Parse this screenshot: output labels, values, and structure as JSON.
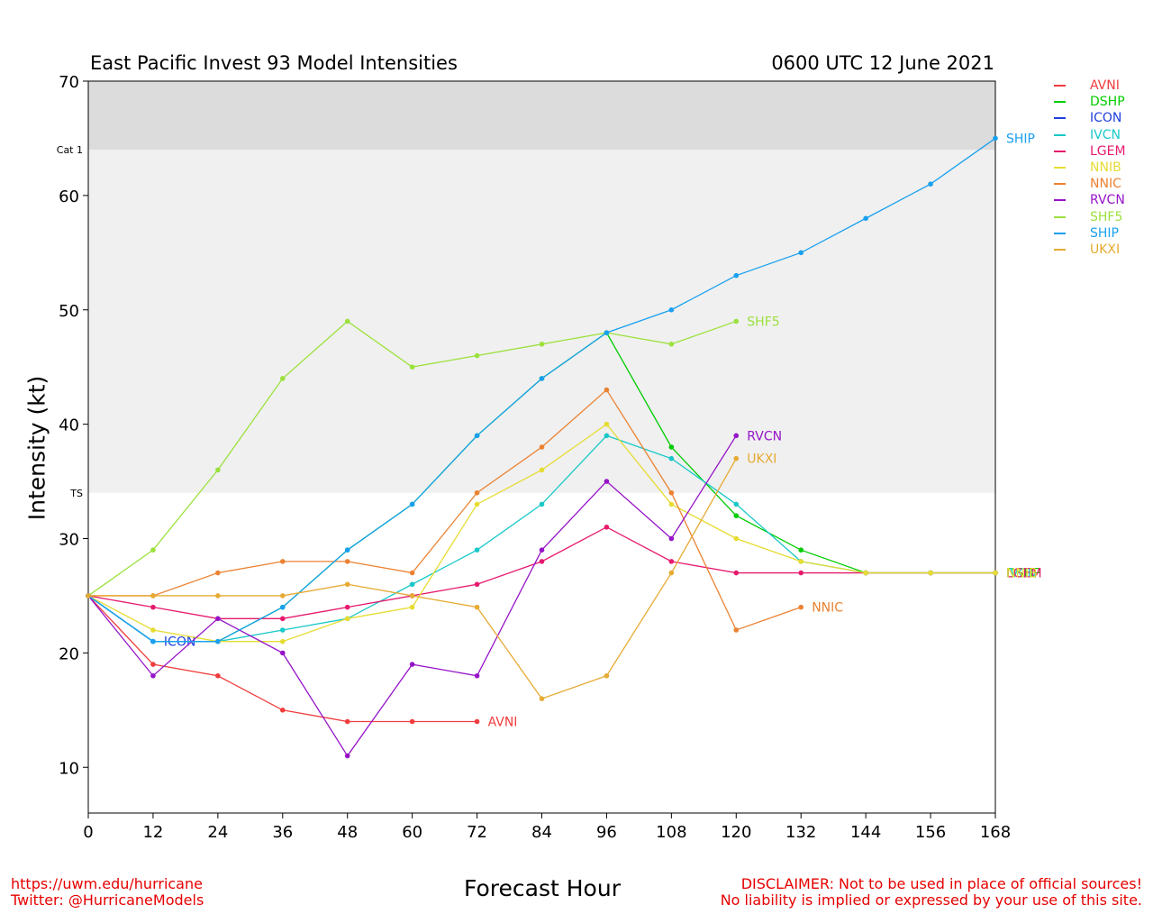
{
  "header": {
    "title": "East Pacific Invest 93 Model Intensities",
    "datetime": "0600 UTC 12 June 2021"
  },
  "footer": {
    "url": "https://uwm.edu/hurricane",
    "twitter": "Twitter: @HurricaneModels",
    "disclaimer_line1": "DISCLAIMER: Not to be used in place of official sources!",
    "disclaimer_line2": "No liability is implied or expressed by your use of this site."
  },
  "chart_data": {
    "type": "line",
    "xlabel": "Forecast Hour",
    "ylabel": "Intensity (kt)",
    "xlim": [
      0,
      168
    ],
    "ylim": [
      6,
      70
    ],
    "xticks": [
      0,
      12,
      24,
      36,
      48,
      60,
      72,
      84,
      96,
      108,
      120,
      132,
      144,
      156,
      168
    ],
    "yticks": [
      10,
      20,
      30,
      40,
      50,
      60,
      70
    ],
    "grid": false,
    "legend_position": "right-outside-top",
    "bands": [
      {
        "label": "TS",
        "from": 34,
        "to": 64,
        "color": "#f0f0f0"
      },
      {
        "label": "Cat 1",
        "from": 64,
        "to": 70,
        "color": "#dcdcdc"
      }
    ],
    "series": [
      {
        "name": "AVNI",
        "color": "#f03c3c",
        "points": [
          [
            0,
            25
          ],
          [
            12,
            19
          ],
          [
            24,
            18
          ],
          [
            36,
            15
          ],
          [
            48,
            14
          ],
          [
            60,
            14
          ],
          [
            72,
            14
          ]
        ],
        "end_label": "AVNI"
      },
      {
        "name": "DSHP",
        "color": "#00cc00",
        "points": [
          [
            0,
            25
          ],
          [
            12,
            21
          ],
          [
            24,
            21
          ],
          [
            36,
            24
          ],
          [
            48,
            29
          ],
          [
            60,
            33
          ],
          [
            72,
            39
          ],
          [
            84,
            44
          ],
          [
            96,
            48
          ],
          [
            108,
            38
          ],
          [
            120,
            32
          ],
          [
            132,
            29
          ],
          [
            144,
            27
          ],
          [
            156,
            27
          ],
          [
            168,
            27
          ]
        ],
        "end_label": "DSHP"
      },
      {
        "name": "ICON",
        "color": "#1f3fdd",
        "points": [
          [
            0,
            25
          ],
          [
            12,
            21
          ]
        ],
        "end_label": "ICON"
      },
      {
        "name": "IVCN",
        "color": "#19c8c8",
        "points": [
          [
            0,
            25
          ],
          [
            12,
            21
          ],
          [
            24,
            21
          ],
          [
            36,
            22
          ],
          [
            48,
            23
          ],
          [
            60,
            26
          ],
          [
            72,
            29
          ],
          [
            84,
            33
          ],
          [
            96,
            39
          ],
          [
            108,
            37
          ],
          [
            120,
            33
          ],
          [
            132,
            28
          ],
          [
            144,
            27
          ],
          [
            156,
            27
          ],
          [
            168,
            27
          ]
        ],
        "end_label": "IVCN"
      },
      {
        "name": "LGEM",
        "color": "#e6196e",
        "points": [
          [
            0,
            25
          ],
          [
            12,
            24
          ],
          [
            24,
            23
          ],
          [
            36,
            23
          ],
          [
            48,
            24
          ],
          [
            60,
            25
          ],
          [
            72,
            26
          ],
          [
            84,
            28
          ],
          [
            96,
            31
          ],
          [
            108,
            28
          ],
          [
            120,
            27
          ],
          [
            132,
            27
          ],
          [
            144,
            27
          ],
          [
            156,
            27
          ],
          [
            168,
            27
          ]
        ],
        "end_label": "LGEM"
      },
      {
        "name": "NNIB",
        "color": "#e6dc32",
        "points": [
          [
            0,
            25
          ],
          [
            12,
            22
          ],
          [
            24,
            21
          ],
          [
            36,
            21
          ],
          [
            48,
            23
          ],
          [
            60,
            24
          ],
          [
            72,
            33
          ],
          [
            84,
            36
          ],
          [
            96,
            40
          ],
          [
            108,
            33
          ],
          [
            120,
            30
          ],
          [
            132,
            28
          ],
          [
            144,
            27
          ],
          [
            156,
            27
          ],
          [
            168,
            27
          ]
        ],
        "end_label": "NNIB"
      },
      {
        "name": "NNIC",
        "color": "#eb8232",
        "points": [
          [
            0,
            25
          ],
          [
            12,
            25
          ],
          [
            24,
            27
          ],
          [
            36,
            28
          ],
          [
            48,
            28
          ],
          [
            60,
            27
          ],
          [
            72,
            34
          ],
          [
            84,
            38
          ],
          [
            96,
            43
          ],
          [
            108,
            34
          ],
          [
            120,
            22
          ],
          [
            132,
            24
          ]
        ],
        "end_label": "NNIC"
      },
      {
        "name": "RVCN",
        "color": "#9614c8",
        "points": [
          [
            0,
            25
          ],
          [
            12,
            18
          ],
          [
            24,
            23
          ],
          [
            36,
            20
          ],
          [
            48,
            11
          ],
          [
            60,
            19
          ],
          [
            72,
            18
          ],
          [
            84,
            29
          ],
          [
            96,
            35
          ],
          [
            108,
            30
          ],
          [
            120,
            39
          ]
        ],
        "end_label": "RVCN"
      },
      {
        "name": "SHF5",
        "color": "#9be13c",
        "points": [
          [
            0,
            25
          ],
          [
            12,
            29
          ],
          [
            24,
            36
          ],
          [
            36,
            44
          ],
          [
            48,
            49
          ],
          [
            60,
            45
          ],
          [
            72,
            46
          ],
          [
            84,
            47
          ],
          [
            96,
            48
          ],
          [
            108,
            47
          ],
          [
            120,
            49
          ]
        ],
        "end_label": "SHF5"
      },
      {
        "name": "SHIP",
        "color": "#19a0f0",
        "points": [
          [
            0,
            25
          ],
          [
            12,
            21
          ],
          [
            24,
            21
          ],
          [
            36,
            24
          ],
          [
            48,
            29
          ],
          [
            60,
            33
          ],
          [
            72,
            39
          ],
          [
            84,
            44
          ],
          [
            96,
            48
          ],
          [
            108,
            50
          ],
          [
            120,
            53
          ],
          [
            132,
            55
          ],
          [
            144,
            58
          ],
          [
            156,
            61
          ],
          [
            168,
            65
          ]
        ],
        "end_label": "SHIP"
      },
      {
        "name": "UKXI",
        "color": "#e6aa32",
        "points": [
          [
            0,
            25
          ],
          [
            12,
            25
          ],
          [
            24,
            25
          ],
          [
            36,
            25
          ],
          [
            48,
            26
          ],
          [
            60,
            25
          ],
          [
            72,
            24
          ],
          [
            84,
            16
          ],
          [
            96,
            18
          ],
          [
            108,
            27
          ],
          [
            120,
            37
          ]
        ],
        "end_label": "UKXI"
      }
    ]
  }
}
